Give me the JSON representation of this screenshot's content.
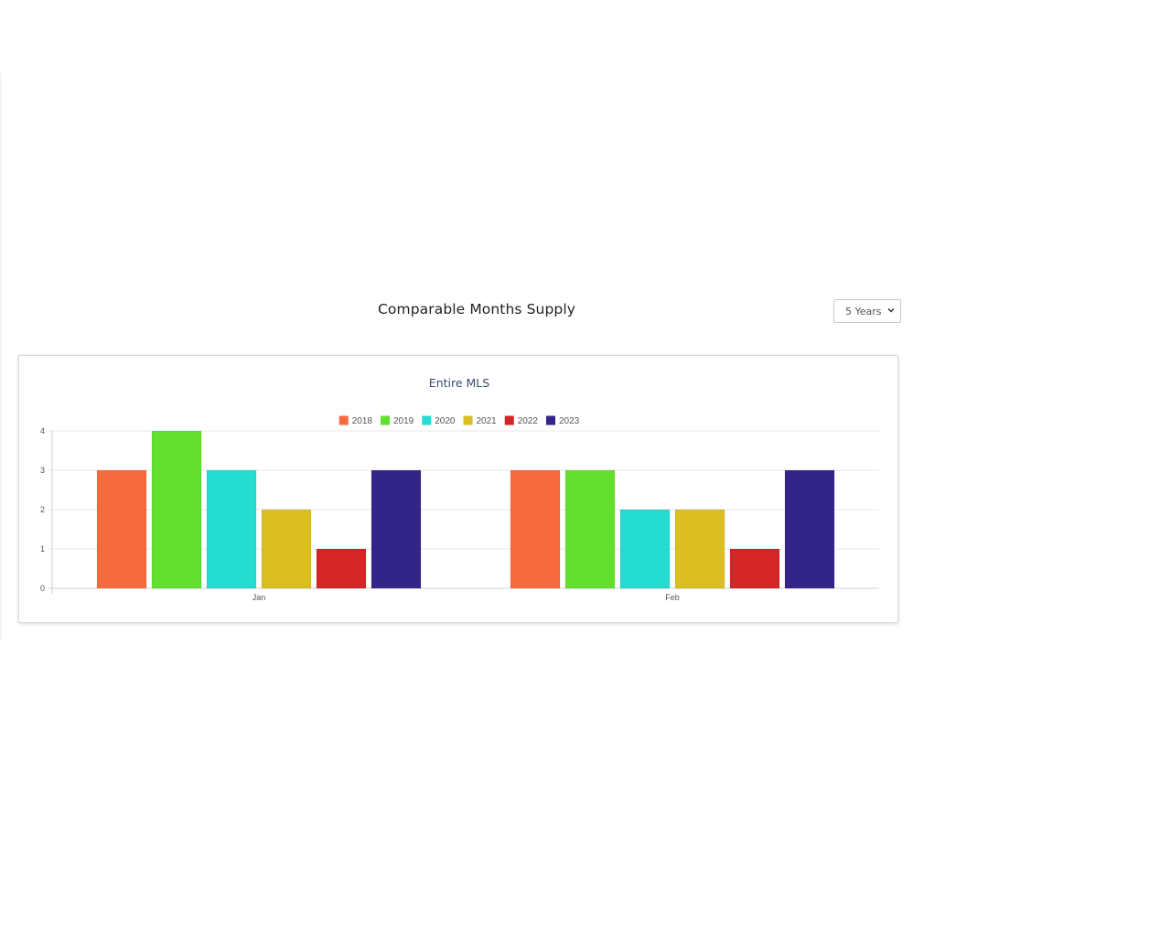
{
  "page": {
    "section_title": "Comparable Months Supply",
    "range_select": {
      "selected": "5 Years",
      "icon": "chevron-down-icon"
    }
  },
  "chart_data": {
    "type": "bar",
    "title": "Entire MLS",
    "xlabel": "",
    "ylabel": "",
    "categories": [
      "Jan",
      "Feb"
    ],
    "ylim": [
      0,
      4
    ],
    "yticks": [
      0,
      1,
      2,
      3,
      4
    ],
    "grid": true,
    "legend_position": "top-center",
    "series": [
      {
        "name": "2018",
        "color": "#f76a3e",
        "values": [
          3,
          3
        ]
      },
      {
        "name": "2019",
        "color": "#62e02d",
        "values": [
          4,
          3
        ]
      },
      {
        "name": "2020",
        "color": "#25dcd0",
        "values": [
          3,
          2
        ]
      },
      {
        "name": "2021",
        "color": "#dbbf20",
        "values": [
          2,
          2
        ]
      },
      {
        "name": "2022",
        "color": "#d42626",
        "values": [
          1,
          1
        ]
      },
      {
        "name": "2023",
        "color": "#332487",
        "values": [
          3,
          3
        ]
      }
    ]
  }
}
